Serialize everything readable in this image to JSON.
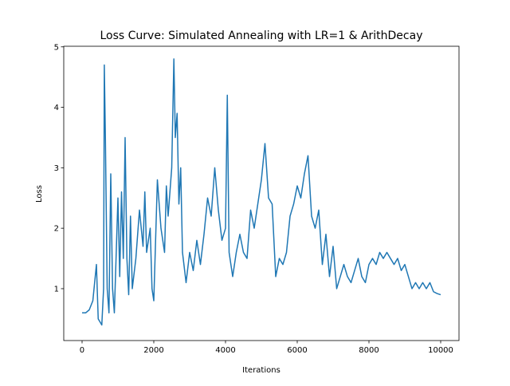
{
  "chart_data": {
    "type": "line",
    "title": "Loss Curve: Simulated Annealing with LR=1 & ArithDecay",
    "xlabel": "Iterations",
    "ylabel": "Loss",
    "x": [
      0,
      100,
      200,
      300,
      400,
      450,
      500,
      550,
      600,
      620,
      650,
      700,
      750,
      800,
      850,
      900,
      1000,
      1050,
      1100,
      1150,
      1200,
      1250,
      1300,
      1350,
      1400,
      1500,
      1600,
      1700,
      1750,
      1800,
      1900,
      1950,
      2000,
      2100,
      2200,
      2300,
      2350,
      2400,
      2500,
      2560,
      2600,
      2650,
      2700,
      2750,
      2800,
      2900,
      3000,
      3100,
      3200,
      3300,
      3400,
      3500,
      3600,
      3700,
      3800,
      3900,
      4000,
      4050,
      4100,
      4200,
      4300,
      4400,
      4500,
      4600,
      4700,
      4800,
      4900,
      5000,
      5100,
      5200,
      5300,
      5400,
      5500,
      5600,
      5700,
      5800,
      5900,
      6000,
      6100,
      6200,
      6300,
      6400,
      6500,
      6600,
      6700,
      6800,
      6900,
      7000,
      7100,
      7200,
      7300,
      7400,
      7500,
      7600,
      7700,
      7800,
      7900,
      8000,
      8100,
      8200,
      8300,
      8400,
      8500,
      8600,
      8700,
      8800,
      8900,
      9000,
      9100,
      9200,
      9300,
      9400,
      9500,
      9600,
      9700,
      9800,
      9900,
      10000
    ],
    "series": [
      {
        "name": "Loss",
        "color": "#1f77b4",
        "values": [
          0.6,
          0.6,
          0.65,
          0.8,
          1.4,
          0.5,
          0.45,
          0.4,
          1.0,
          4.7,
          3.5,
          1.0,
          0.6,
          2.9,
          1.0,
          0.6,
          2.5,
          1.2,
          2.6,
          1.5,
          3.5,
          1.5,
          0.9,
          2.2,
          1.0,
          1.5,
          2.3,
          1.7,
          2.6,
          1.6,
          2.0,
          1.0,
          0.8,
          2.8,
          2.0,
          1.6,
          2.7,
          2.2,
          3.0,
          4.8,
          3.5,
          3.9,
          2.4,
          3.0,
          1.6,
          1.1,
          1.6,
          1.3,
          1.8,
          1.4,
          1.9,
          2.5,
          2.2,
          3.0,
          2.3,
          1.8,
          2.0,
          4.2,
          1.6,
          1.2,
          1.6,
          1.9,
          1.6,
          1.5,
          2.3,
          2.0,
          2.4,
          2.8,
          3.4,
          2.5,
          2.4,
          1.2,
          1.5,
          1.4,
          1.6,
          2.2,
          2.4,
          2.7,
          2.5,
          2.9,
          3.2,
          2.2,
          2.0,
          2.3,
          1.4,
          1.9,
          1.2,
          1.7,
          1.0,
          1.2,
          1.4,
          1.2,
          1.1,
          1.3,
          1.5,
          1.2,
          1.1,
          1.4,
          1.5,
          1.4,
          1.6,
          1.5,
          1.6,
          1.5,
          1.4,
          1.5,
          1.3,
          1.4,
          1.2,
          1.0,
          1.1,
          1.0,
          1.1,
          1.0,
          1.1,
          0.95,
          0.92,
          0.9
        ]
      }
    ],
    "xlim": [
      -511,
      10511
    ],
    "ylim": [
      0.142,
      5.01
    ],
    "xticks": [
      0,
      2000,
      4000,
      6000,
      8000,
      10000
    ],
    "yticks": [
      1,
      2,
      3,
      4,
      5
    ]
  }
}
